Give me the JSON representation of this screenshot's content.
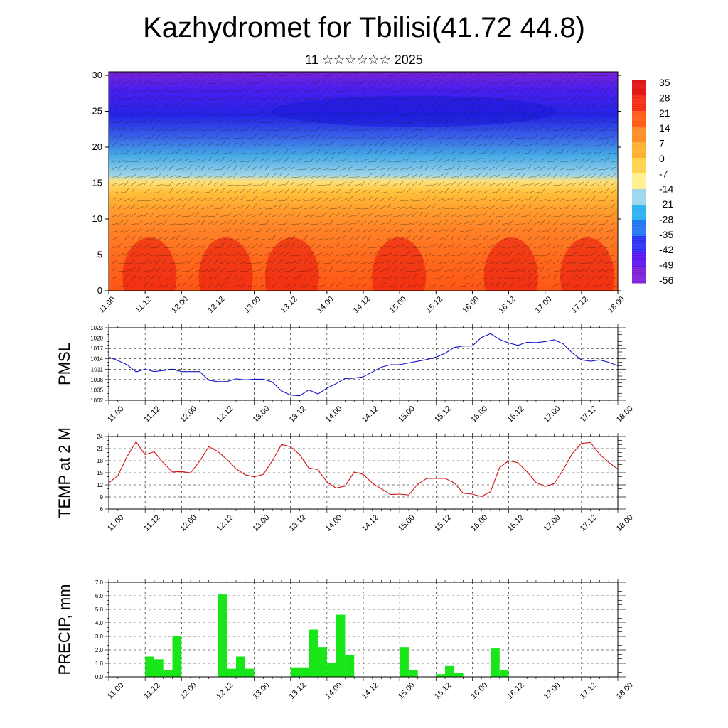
{
  "title": "Kazhydromet for Tbilisi(41.72 44.8)",
  "subtitle": "11 ☆☆☆☆☆☆ 2025",
  "chart_data": [
    {
      "type": "heatmap",
      "title": "",
      "xlabel": "",
      "ylabel": "",
      "x_tick_labels": [
        "11.00",
        "11.12",
        "12.00",
        "12.12",
        "13.00",
        "13.12",
        "14.00",
        "14.12",
        "15.00",
        "15.12",
        "16.00",
        "16.12",
        "17.00",
        "17.12",
        "18.00"
      ],
      "y_ticks": [
        0,
        5,
        10,
        15,
        20,
        25,
        30
      ],
      "ylim": [
        0,
        30.5
      ],
      "colorbar_labels": [
        "35",
        "28",
        "21",
        "14",
        "7",
        "0",
        "-7",
        "-14",
        "-21",
        "-28",
        "-35",
        "-42",
        "-49",
        "-56"
      ],
      "colormap": [
        "#7b1fd6",
        "#5a14f0",
        "#2a2ff0",
        "#1f74f0",
        "#28b0f0",
        "#9ad6ee",
        "#fff08c",
        "#ffd24a",
        "#ffae2c",
        "#ff8a24",
        "#ff5a14",
        "#f32a10",
        "#e01010"
      ],
      "overlay": "wind barbs"
    },
    {
      "type": "line",
      "ylabel": "PMSL",
      "x_tick_labels": [
        "11.00",
        "11.12",
        "12.00",
        "12.12",
        "13.00",
        "13.12",
        "14.00",
        "14.12",
        "15.00",
        "15.12",
        "16.00",
        "16.12",
        "17.00",
        "17.12",
        "18.00"
      ],
      "y_ticks": [
        1002,
        1005,
        1008,
        1011,
        1014,
        1017,
        1020,
        1023
      ],
      "ylim": [
        1002,
        1023
      ],
      "color": "#1414c8",
      "values": [
        1014.5,
        1013.5,
        1012.3,
        1010.2,
        1011.0,
        1010.3,
        1010.6,
        1011.0,
        1010.3,
        1010.3,
        1010.3,
        1007.8,
        1007.4,
        1007.4,
        1008.2,
        1007.9,
        1008.1,
        1008.1,
        1007.3,
        1004.7,
        1003.5,
        1003.3,
        1005.0,
        1003.8,
        1005.5,
        1006.8,
        1008.3,
        1008.4,
        1008.8,
        1010.2,
        1011.6,
        1012.3,
        1012.3,
        1012.8,
        1013.3,
        1013.8,
        1014.5,
        1015.6,
        1017.3,
        1017.7,
        1017.7,
        1020.2,
        1021.3,
        1019.6,
        1018.6,
        1017.9,
        1018.8,
        1018.7,
        1019.0,
        1019.5,
        1018.3,
        1015.7,
        1013.7,
        1013.3,
        1013.7,
        1013.0,
        1012.0
      ]
    },
    {
      "type": "line",
      "ylabel": "TEMP at 2 M",
      "x_tick_labels": [
        "11.00",
        "11.12",
        "12.00",
        "12.12",
        "13.00",
        "13.12",
        "14.00",
        "14.12",
        "15.00",
        "15.12",
        "16.00",
        "16.12",
        "17.00",
        "17.12",
        "18.00"
      ],
      "y_ticks": [
        6,
        9,
        12,
        15,
        18,
        21,
        24
      ],
      "ylim": [
        6,
        24
      ],
      "color": "#d21414",
      "values": [
        12.5,
        14.3,
        19.0,
        22.7,
        19.5,
        20.2,
        17.5,
        15.2,
        15.3,
        15.0,
        17.9,
        21.5,
        20.3,
        18.3,
        16.0,
        14.5,
        14.0,
        14.6,
        18.0,
        22.0,
        21.5,
        19.5,
        16.2,
        15.8,
        12.7,
        11.2,
        11.7,
        15.2,
        14.6,
        12.4,
        11.0,
        9.6,
        9.7,
        9.5,
        12.2,
        13.6,
        13.6,
        13.6,
        12.5,
        9.9,
        9.7,
        9.1,
        10.3,
        16.3,
        18.0,
        17.5,
        15.3,
        12.6,
        11.6,
        12.3,
        15.8,
        19.8,
        22.3,
        22.5,
        19.6,
        17.6,
        15.9
      ]
    },
    {
      "type": "bar",
      "ylabel": "PRECIP, mm",
      "x_tick_labels": [
        "11.00",
        "11.12",
        "12.00",
        "12.12",
        "13.00",
        "13.12",
        "14.00",
        "14.12",
        "15.00",
        "15.12",
        "16.00",
        "16.12",
        "17.00",
        "17.12",
        "18.00"
      ],
      "y_tick_labels": [
        "0.0",
        "1.0",
        "2.0",
        "3.0",
        "4.0",
        "5.0",
        "6.0",
        "7.0"
      ],
      "ylim": [
        0,
        7
      ],
      "color": "#19e619",
      "values": [
        0,
        0,
        0,
        0,
        1.5,
        1.3,
        0.5,
        3.0,
        0,
        0,
        0,
        0,
        6.1,
        0.6,
        1.5,
        0.6,
        0,
        0,
        0,
        0,
        0.7,
        0.7,
        3.5,
        2.2,
        1.0,
        4.6,
        1.6,
        0,
        0,
        0,
        0,
        0,
        2.2,
        0.5,
        0,
        0,
        0.2,
        0.8,
        0.3,
        0,
        0,
        0,
        2.1,
        0.5,
        0,
        0,
        0,
        0,
        0,
        0,
        0,
        0,
        0,
        0,
        0,
        0,
        0
      ]
    }
  ]
}
